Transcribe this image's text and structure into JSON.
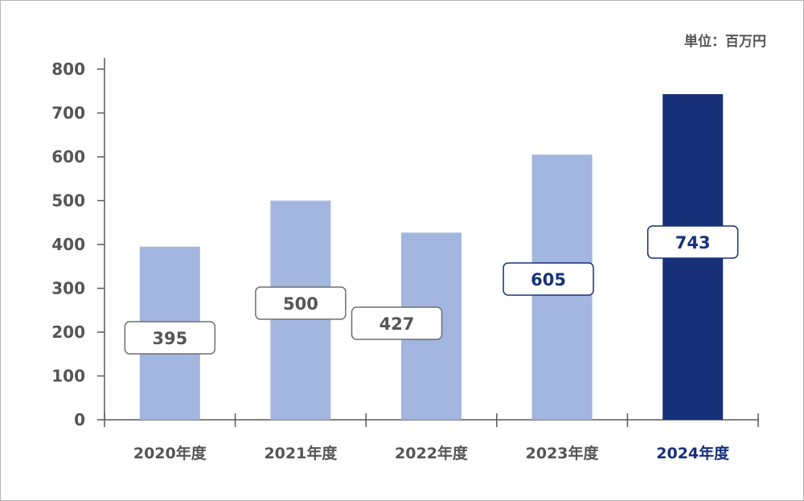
{
  "chart_data": {
    "type": "bar",
    "unit_label": "単位：百万円",
    "categories": [
      "2020年度",
      "2021年度",
      "2022年度",
      "2023年度",
      "2024年度"
    ],
    "values": [
      395,
      500,
      427,
      605,
      743
    ],
    "data_labels": [
      "395",
      "500",
      "427",
      "605",
      "743"
    ],
    "ylim": [
      0,
      800
    ],
    "yticks": [
      0,
      100,
      200,
      300,
      400,
      500,
      600,
      700,
      800
    ],
    "grid": false,
    "highlight_index": 4,
    "colors": {
      "bar": "#a3b6e0",
      "highlight_bar": "#17317a",
      "axis": "#595959",
      "text": "#555555",
      "highlight_text": "#17317a"
    }
  }
}
